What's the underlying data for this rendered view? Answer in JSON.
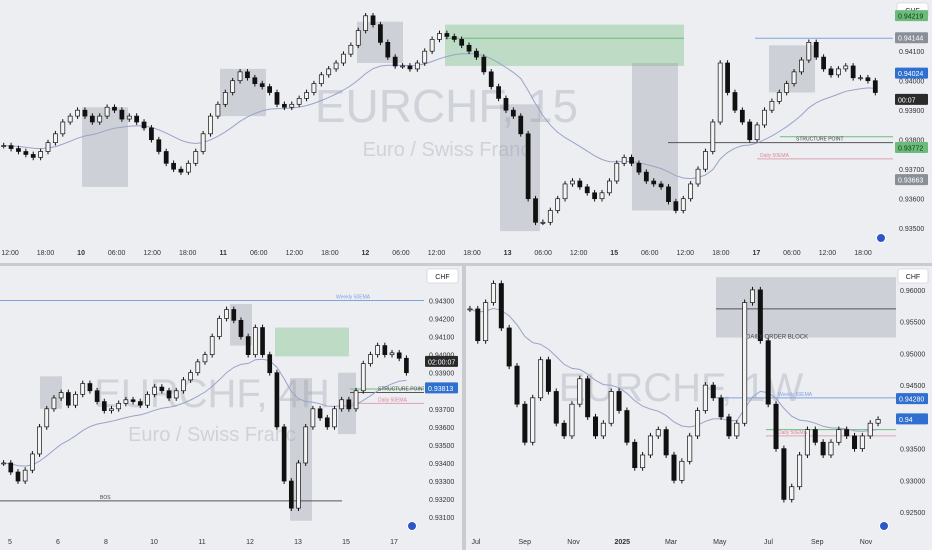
{
  "colors": {
    "background": "#eceef2",
    "candle": "#111111",
    "green_zone": "#9fd0a3",
    "grey_zone": "#9aa0a8",
    "blue_line": "#7fa3e0",
    "price_green": "#6dbb7a",
    "price_dark": "#2a2a2a",
    "price_blue": "#2f6fd0",
    "watermark": "#cfd2d8"
  },
  "charts": [
    {
      "id": "top",
      "type": "candlestick",
      "watermark_symbol": "EURCHF, 15",
      "watermark_desc": "Euro / Swiss Franc",
      "currency_label": "CHF",
      "ylim": [
        0.9346,
        0.9426
      ],
      "y_ticks": [
        "0.94100",
        "0.94000",
        "0.93900",
        "0.93800",
        "0.93700",
        "0.93600",
        "0.93500"
      ],
      "x_ticks": [
        "12:00",
        "18:00",
        "10",
        "06:00",
        "12:00",
        "18:00",
        "11",
        "06:00",
        "12:00",
        "18:00",
        "12",
        "06:00",
        "12:00",
        "18:00",
        "13",
        "06:00",
        "12:00",
        "15",
        "06:00",
        "12:00",
        "18:00",
        "17",
        "06:00",
        "12:00",
        "18:00"
      ],
      "bold_ticks": [
        "10",
        "11",
        "12",
        "13",
        "15",
        "17"
      ],
      "price_tags": [
        {
          "text": "0.94219",
          "value": 0.94219,
          "style": "green"
        },
        {
          "text": "0.94144",
          "value": 0.94144,
          "style": "grey"
        },
        {
          "text": "0.94024",
          "value": 0.94024,
          "style": "blue"
        },
        {
          "text": "00:07",
          "value": 0.93935,
          "style": "dark"
        },
        {
          "text": "0.93772",
          "value": 0.93772,
          "style": "green"
        },
        {
          "text": "0.93663",
          "value": 0.93663,
          "style": "grey"
        }
      ],
      "annotations": [
        {
          "text": "STRUCTURE POINT",
          "value": 0.9379
        },
        {
          "text": "Daily 50EMA",
          "value": 0.93735
        }
      ],
      "series_ohlc_close": [
        0.9378,
        0.9377,
        0.9376,
        0.9375,
        0.9374,
        0.9376,
        0.9379,
        0.9382,
        0.9386,
        0.9388,
        0.939,
        0.9388,
        0.9386,
        0.9388,
        0.9391,
        0.939,
        0.9387,
        0.9388,
        0.9386,
        0.9384,
        0.938,
        0.9376,
        0.9372,
        0.937,
        0.9369,
        0.9372,
        0.9376,
        0.9382,
        0.9388,
        0.9392,
        0.9396,
        0.94,
        0.9403,
        0.9401,
        0.9399,
        0.9398,
        0.9396,
        0.9392,
        0.9391,
        0.9392,
        0.9394,
        0.9396,
        0.9399,
        0.9402,
        0.9404,
        0.9406,
        0.9409,
        0.9412,
        0.9417,
        0.9422,
        0.9419,
        0.9413,
        0.9408,
        0.9405,
        0.9405,
        0.9404,
        0.9406,
        0.941,
        0.9414,
        0.9416,
        0.9415,
        0.9414,
        0.9412,
        0.941,
        0.9408,
        0.9403,
        0.9398,
        0.9394,
        0.939,
        0.9388,
        0.9382,
        0.936,
        0.9352,
        0.9352,
        0.9356,
        0.936,
        0.9365,
        0.9366,
        0.9364,
        0.9362,
        0.936,
        0.9362,
        0.9366,
        0.9372,
        0.9374,
        0.9372,
        0.9369,
        0.9366,
        0.9365,
        0.9364,
        0.9359,
        0.9356,
        0.936,
        0.9365,
        0.937,
        0.9376,
        0.9386,
        0.9406,
        0.9396,
        0.939,
        0.9386,
        0.938,
        0.9385,
        0.939,
        0.9393,
        0.9396,
        0.9399,
        0.9403,
        0.9407,
        0.9413,
        0.9408,
        0.9404,
        0.9402,
        0.9404,
        0.9405,
        0.9401,
        0.9401,
        0.94,
        0.9396
      ]
    },
    {
      "id": "bottom_left",
      "type": "candlestick",
      "watermark_symbol": "EURCHF, 4H",
      "watermark_desc": "Euro / Swiss Franc",
      "currency_label": "CHF",
      "ylim": [
        0.9304,
        0.9438
      ],
      "y_ticks": [
        "0.94300",
        "0.94200",
        "0.94100",
        "0.94000",
        "0.93900",
        "0.93700",
        "0.93600",
        "0.93500",
        "0.93400",
        "0.93300",
        "0.93200",
        "0.93100"
      ],
      "x_ticks": [
        "5",
        "6",
        "8",
        "10",
        "11",
        "12",
        "13",
        "15",
        "17"
      ],
      "price_tags": [
        {
          "text": "02:00:07",
          "value": 0.9396,
          "style": "dark"
        },
        {
          "text": "0.93813",
          "value": 0.93813,
          "style": "blue"
        }
      ],
      "annotations": [
        {
          "text": "Weekly 50EMA",
          "value": 0.943
        },
        {
          "text": "STRUCTURE POINT",
          "value": 0.9379
        },
        {
          "text": "Daily 50EMA",
          "value": 0.9373
        },
        {
          "text": "BOS",
          "value": 0.9319
        }
      ],
      "series_ohlc_close": [
        0.934,
        0.9335,
        0.933,
        0.9336,
        0.9345,
        0.936,
        0.937,
        0.9376,
        0.9379,
        0.9372,
        0.9378,
        0.9384,
        0.938,
        0.9374,
        0.9369,
        0.937,
        0.9373,
        0.9375,
        0.9374,
        0.9372,
        0.9378,
        0.9382,
        0.938,
        0.9376,
        0.938,
        0.9386,
        0.939,
        0.9396,
        0.94,
        0.941,
        0.942,
        0.9425,
        0.9419,
        0.941,
        0.94,
        0.9415,
        0.94,
        0.939,
        0.936,
        0.933,
        0.9315,
        0.934,
        0.936,
        0.937,
        0.9365,
        0.936,
        0.937,
        0.9375,
        0.937,
        0.938,
        0.9395,
        0.94,
        0.9405,
        0.94,
        0.9401,
        0.9398,
        0.939
      ]
    },
    {
      "id": "bottom_right",
      "type": "candlestick",
      "watermark_symbol": "EURCHF, 1W",
      "watermark_desc": "",
      "currency_label": "CHF",
      "ylim": [
        0.9225,
        0.9625
      ],
      "y_ticks": [
        "0.96000",
        "0.95500",
        "0.95000",
        "0.94500",
        "0.93500",
        "0.93000",
        "0.92500"
      ],
      "x_ticks": [
        "Jul",
        "Sep",
        "Nov",
        "2025",
        "Mar",
        "May",
        "Jul",
        "Sep",
        "Nov"
      ],
      "bold_ticks": [
        "2025"
      ],
      "price_tags": [
        {
          "text": "0.94280",
          "value": 0.9428,
          "style": "blue"
        },
        {
          "text": "0.94",
          "value": 0.9396,
          "style": "blue"
        }
      ],
      "annotations": [
        {
          "text": "DAILY ORDER BLOCK",
          "value": 0.952
        },
        {
          "text": "Weekly 50EMA",
          "value": 0.943
        },
        {
          "text": "Daily 50EMA",
          "value": 0.937
        }
      ],
      "series_ohlc_close": [
        0.957,
        0.952,
        0.958,
        0.961,
        0.954,
        0.948,
        0.942,
        0.936,
        0.943,
        0.949,
        0.944,
        0.939,
        0.937,
        0.942,
        0.946,
        0.94,
        0.937,
        0.939,
        0.944,
        0.941,
        0.936,
        0.932,
        0.934,
        0.937,
        0.938,
        0.934,
        0.93,
        0.933,
        0.937,
        0.941,
        0.945,
        0.943,
        0.94,
        0.937,
        0.939,
        0.958,
        0.96,
        0.952,
        0.942,
        0.935,
        0.927,
        0.929,
        0.934,
        0.938,
        0.936,
        0.934,
        0.936,
        0.938,
        0.937,
        0.935,
        0.937,
        0.939,
        0.9396
      ]
    }
  ]
}
